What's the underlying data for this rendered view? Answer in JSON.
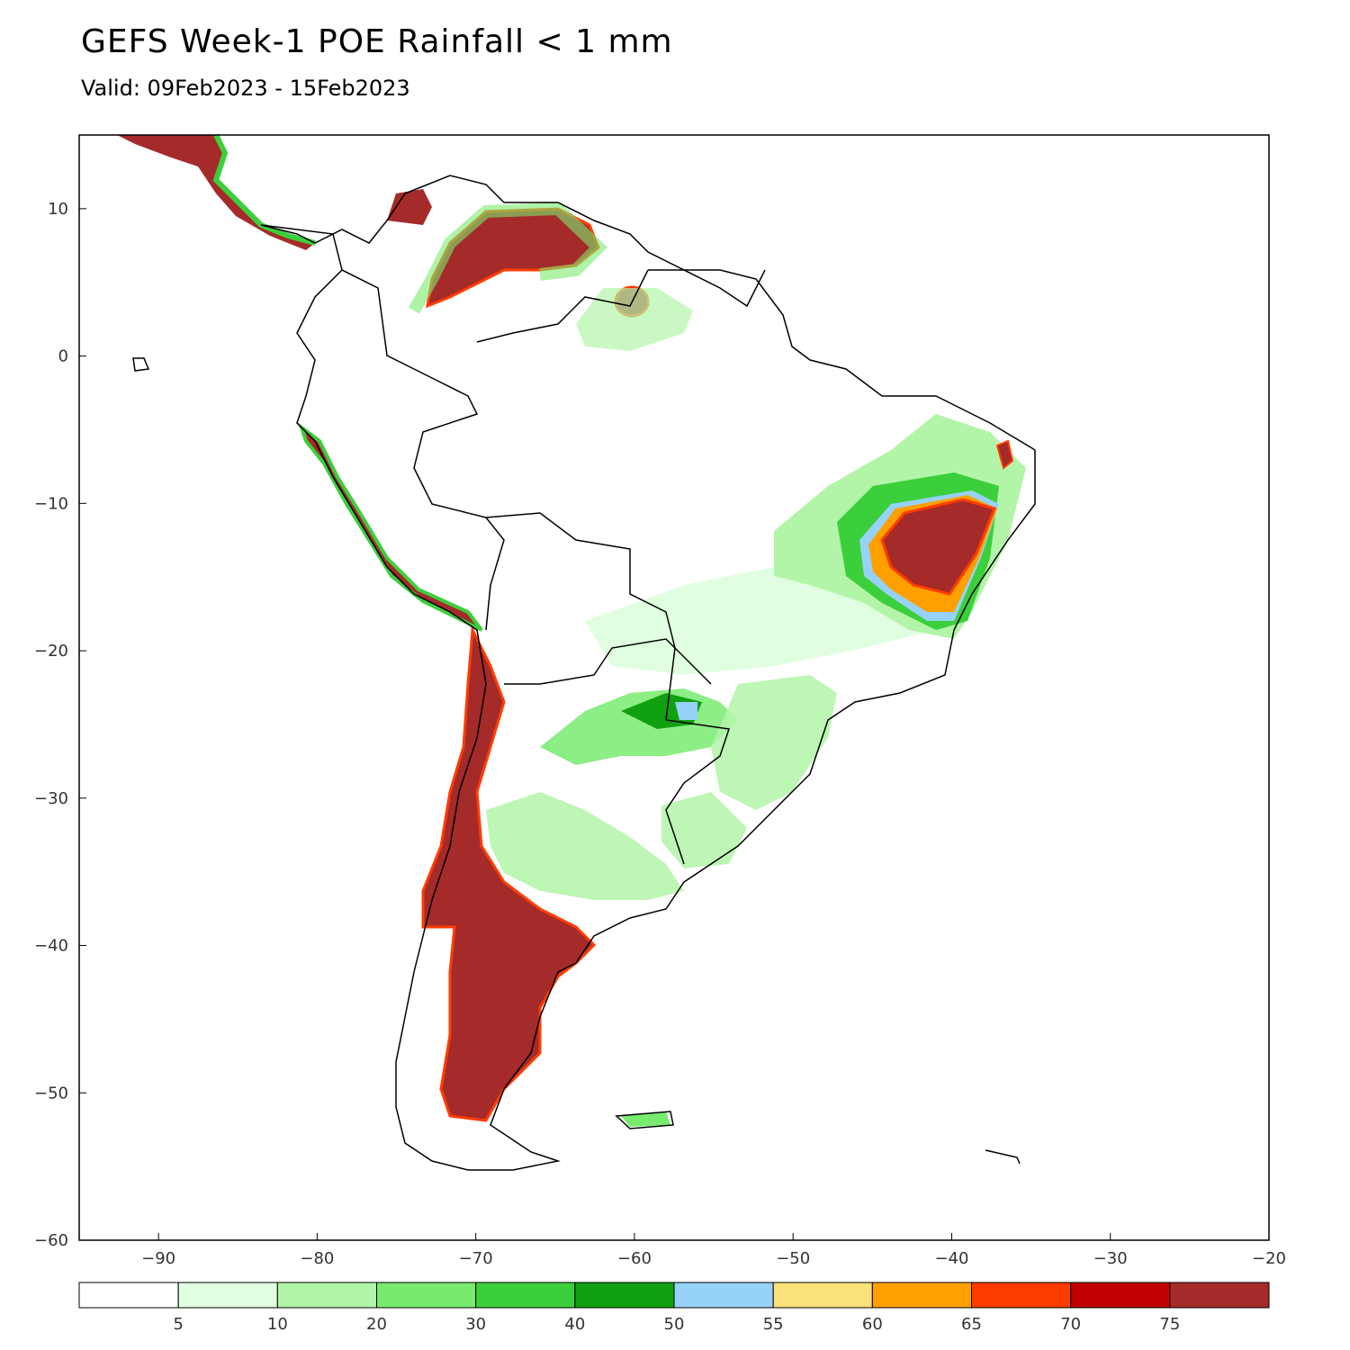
{
  "title": "GEFS Week-1 POE Rainfall < 1 mm",
  "subtitle": "Valid: 09Feb2023 - 15Feb2023",
  "map": {
    "lon_range": [
      -95,
      -20
    ],
    "lat_range": [
      -60,
      15
    ],
    "lon_ticks": [
      -90,
      -80,
      -70,
      -60,
      -50,
      -40,
      -30,
      -20
    ],
    "lat_ticks": [
      10,
      0,
      -10,
      -20,
      -30,
      -40,
      -50,
      -60
    ],
    "lon_tick_labels": [
      "−90",
      "−80",
      "−70",
      "−60",
      "−50",
      "−40",
      "−30",
      "−20"
    ],
    "lat_tick_labels": [
      "10",
      "0",
      "−10",
      "−20",
      "−30",
      "−40",
      "−50",
      "−60"
    ]
  },
  "colorbar": {
    "colors": [
      "#ffffff",
      "#e0ffe0",
      "#b3f5a8",
      "#78eb6e",
      "#3ccf3c",
      "#10a010",
      "#96d2fa",
      "#fae17a",
      "#ffa000",
      "#ff3c00",
      "#c00000",
      "#a52a2a"
    ],
    "labels": [
      "5",
      "10",
      "20",
      "30",
      "40",
      "50",
      "55",
      "60",
      "65",
      "70",
      "75"
    ]
  }
}
